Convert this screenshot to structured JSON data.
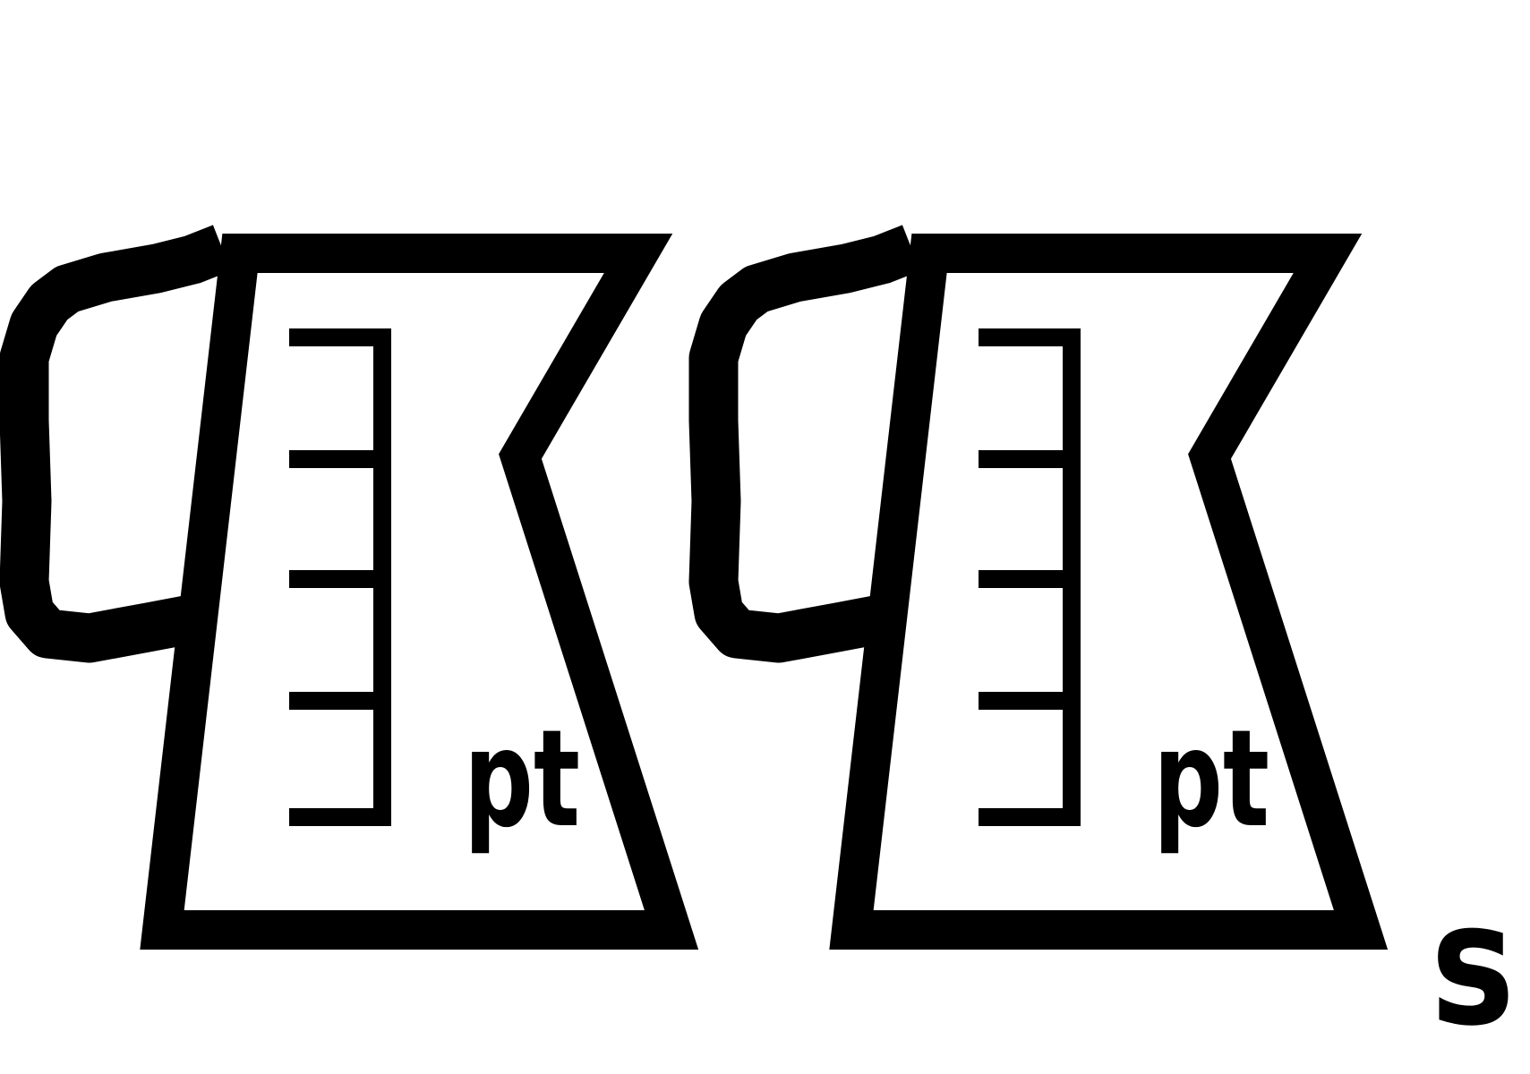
{
  "symbol": {
    "ink_color": "#000000",
    "paper_color": "#ffffff",
    "icon": "measuring-jug-icon",
    "jugs": [
      {
        "unit_label": "pt"
      },
      {
        "unit_label": "pt"
      }
    ],
    "suffix": "s"
  }
}
